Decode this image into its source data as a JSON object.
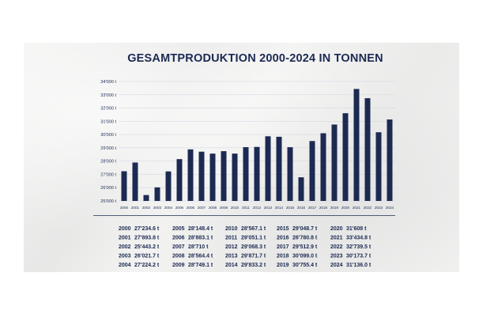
{
  "chart_data": {
    "type": "bar",
    "title": "GESAMTPRODUKTION 2000-2024 IN TONNEN",
    "categories": [
      "2000",
      "2001",
      "2002",
      "2003",
      "2004",
      "2005",
      "2006",
      "2007",
      "2008",
      "2009",
      "2010",
      "2011",
      "2012",
      "2013",
      "2014",
      "2015",
      "2016",
      "2017",
      "2018",
      "2019",
      "2020",
      "2021",
      "2022",
      "2023",
      "2024"
    ],
    "values": [
      27234.6,
      27893.8,
      25443.2,
      26021.7,
      27224.2,
      28148.4,
      28883.1,
      28710,
      28564.4,
      28749.1,
      28567.1,
      29051.1,
      29068.3,
      29871.7,
      29833.2,
      29048.7,
      26780.8,
      29512.9,
      30099.0,
      30755.4,
      31608,
      33434.8,
      32739.5,
      30173.7,
      31136.0
    ],
    "ylim": [
      25000,
      34000
    ],
    "yticks": [
      "25'000 t",
      "26'000 t",
      "27'000 t",
      "28'000 t",
      "29'000 t",
      "30'000 t",
      "31'000 t",
      "32'000 t",
      "33'000 t",
      "34'000 t"
    ],
    "xlabel": "",
    "ylabel": "",
    "grid": true,
    "bar_color": "#1c2a52",
    "table": [
      {
        "year": "2000",
        "value": "27'234.6 t"
      },
      {
        "year": "2001",
        "value": "27'893.8 t"
      },
      {
        "year": "2002",
        "value": "25'443.2 t"
      },
      {
        "year": "2003",
        "value": "26'021.7 t"
      },
      {
        "year": "2004",
        "value": "27'224.2 t"
      },
      {
        "year": "2005",
        "value": "28'148.4 t"
      },
      {
        "year": "2006",
        "value": "28'883.1 t"
      },
      {
        "year": "2007",
        "value": "28'710 t"
      },
      {
        "year": "2008",
        "value": "28'564.4 t"
      },
      {
        "year": "2009",
        "value": "28'749.1 t"
      },
      {
        "year": "2010",
        "value": "28'567.1 t"
      },
      {
        "year": "2011",
        "value": "29'051.1 t"
      },
      {
        "year": "2012",
        "value": "29'068.3 t"
      },
      {
        "year": "2013",
        "value": "29'871.7 t"
      },
      {
        "year": "2014",
        "value": "29'833.2 t"
      },
      {
        "year": "2015",
        "value": "29'048.7 t"
      },
      {
        "year": "2016",
        "value": "26'780.8 t"
      },
      {
        "year": "2017",
        "value": "29'512.9 t"
      },
      {
        "year": "2018",
        "value": "30'099.0 t"
      },
      {
        "year": "2019",
        "value": "30'755.4 t"
      },
      {
        "year": "2020",
        "value": "31'608 t"
      },
      {
        "year": "2021",
        "value": "33'434.8 t"
      },
      {
        "year": "2022",
        "value": "32'739.5 t"
      },
      {
        "year": "2023",
        "value": "30'173.7 t"
      },
      {
        "year": "2024",
        "value": "31'136.0 t"
      }
    ]
  }
}
